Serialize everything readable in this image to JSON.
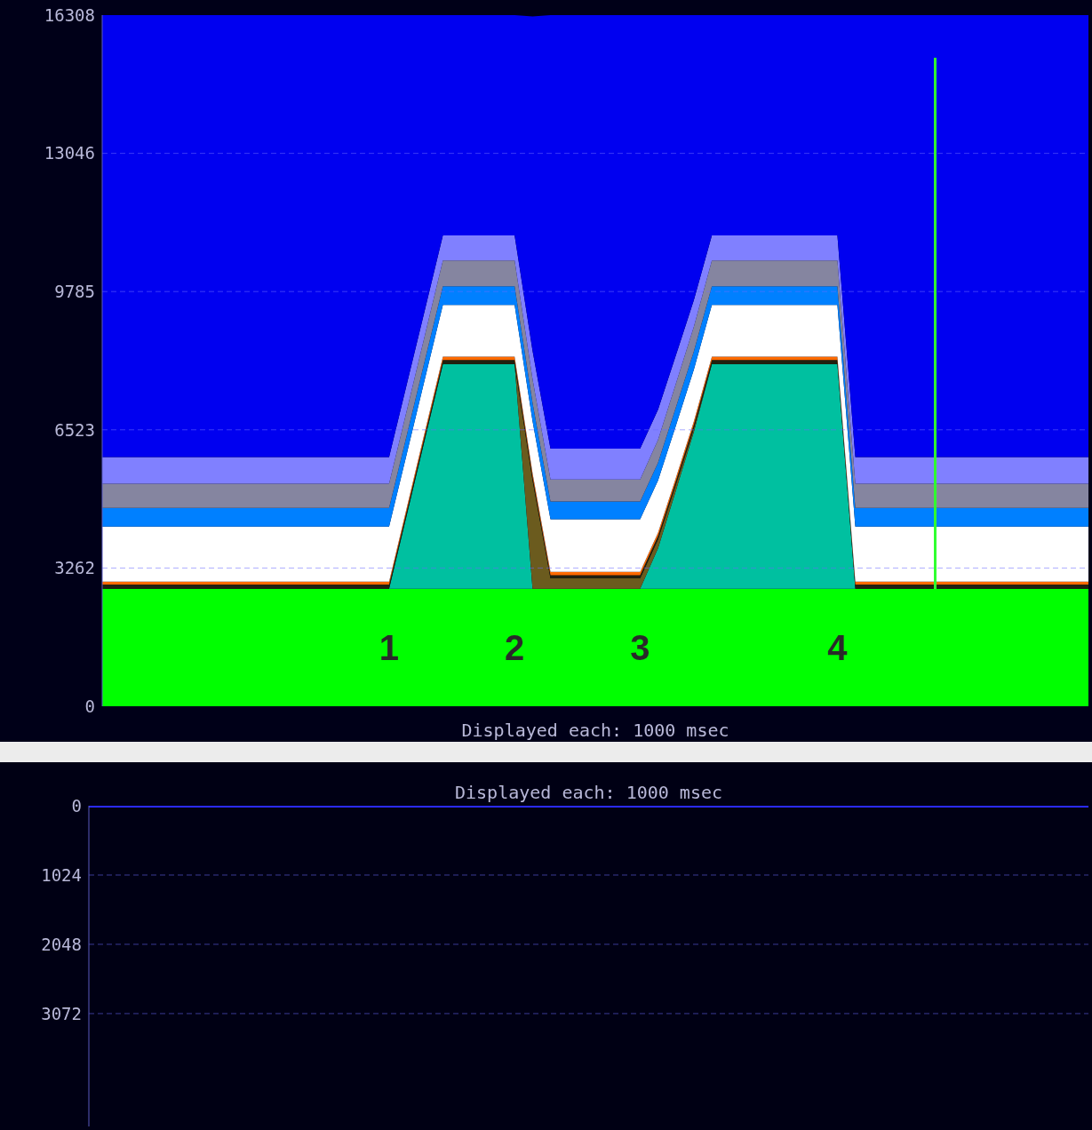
{
  "chart_data": [
    {
      "type": "area",
      "stacked": true,
      "xlabel": "Displayed each: 1000 msec",
      "grid": "y",
      "ylim": [
        0,
        16308
      ],
      "yticks": [
        0,
        3262,
        6523,
        9785,
        13046,
        16308
      ],
      "annotations": [
        "1",
        "2",
        "3",
        "4"
      ],
      "categories": [
        null,
        null,
        null,
        null,
        null,
        null,
        null,
        null,
        null,
        null,
        null,
        null,
        null,
        null,
        null,
        null,
        null,
        null,
        null,
        null,
        null,
        null,
        null,
        null,
        null,
        null,
        null,
        null,
        null,
        null,
        null,
        null,
        null,
        null,
        null,
        null,
        null,
        null,
        null,
        null,
        null,
        null,
        null,
        null,
        null,
        null,
        null,
        null,
        null,
        null,
        null,
        null,
        null,
        null,
        null,
        null
      ],
      "series": [
        {
          "color": "#00ff00",
          "values": [
            2770,
            2770,
            2770,
            2770,
            2770,
            2770,
            2770,
            2770,
            2770,
            2770,
            2770,
            2770,
            2770,
            2770,
            2770,
            2770,
            2770,
            2770,
            2770,
            2770,
            2770,
            2770,
            2770,
            2770,
            2770,
            2770,
            2770,
            2770,
            2770,
            2770,
            2770,
            2770,
            2770,
            2770,
            2770,
            2770,
            2770,
            2770,
            2770,
            2770,
            2770,
            2770,
            2770,
            2770,
            2770,
            2770,
            2770,
            2770,
            2770,
            2770,
            2770,
            2770,
            2770,
            2770,
            2770,
            2770
          ]
        },
        {
          "color": "#00c0a0",
          "values": [
            0,
            0,
            0,
            0,
            0,
            0,
            0,
            0,
            0,
            0,
            0,
            0,
            0,
            0,
            0,
            0,
            0,
            1770,
            3540,
            5300,
            5300,
            5300,
            5300,
            5300,
            0,
            0,
            0,
            0,
            0,
            0,
            0,
            960,
            2330,
            3710,
            5300,
            5300,
            5300,
            5300,
            5300,
            5300,
            5300,
            5300,
            0,
            0,
            0,
            0,
            0,
            0,
            0,
            0,
            0,
            0,
            0,
            0,
            0,
            0
          ]
        },
        {
          "color": "#6b5b1e",
          "values": [
            null,
            null,
            null,
            null,
            null,
            null,
            null,
            null,
            null,
            null,
            null,
            null,
            null,
            null,
            null,
            null,
            null,
            null,
            null,
            null,
            null,
            null,
            null,
            0,
            2560,
            250,
            250,
            250,
            250,
            250,
            250,
            210,
            140,
            80,
            0,
            null,
            null,
            null,
            null,
            null,
            null,
            null,
            null,
            null,
            null,
            null,
            null,
            null,
            null,
            null,
            null,
            null,
            null,
            null,
            null,
            null
          ]
        },
        {
          "color": "#202010",
          "values": [
            100,
            100,
            100,
            100,
            100,
            100,
            100,
            100,
            100,
            100,
            100,
            100,
            100,
            100,
            100,
            100,
            100,
            100,
            100,
            100,
            100,
            100,
            100,
            100,
            90,
            70,
            70,
            70,
            70,
            70,
            70,
            80,
            80,
            90,
            100,
            100,
            100,
            100,
            100,
            100,
            100,
            100,
            100,
            100,
            100,
            100,
            100,
            100,
            100,
            100,
            100,
            100,
            100,
            100,
            100,
            100
          ]
        },
        {
          "color": "#ff6a00",
          "values": [
            70,
            70,
            70,
            70,
            70,
            70,
            70,
            70,
            70,
            70,
            70,
            70,
            70,
            70,
            70,
            70,
            70,
            70,
            80,
            80,
            80,
            80,
            80,
            80,
            80,
            80,
            80,
            80,
            80,
            80,
            80,
            80,
            80,
            80,
            80,
            80,
            80,
            80,
            80,
            80,
            80,
            80,
            70,
            70,
            70,
            70,
            70,
            70,
            70,
            70,
            70,
            70,
            70,
            70,
            70,
            70
          ]
        },
        {
          "color": "#ffffff",
          "values": [
            1300,
            1300,
            1300,
            1300,
            1300,
            1300,
            1300,
            1300,
            1300,
            1300,
            1300,
            1300,
            1300,
            1300,
            1300,
            1300,
            1300,
            1270,
            1240,
            1220,
            1220,
            1220,
            1220,
            1220,
            1230,
            1240,
            1240,
            1240,
            1240,
            1240,
            1240,
            1230,
            1230,
            1220,
            1220,
            1220,
            1220,
            1220,
            1220,
            1220,
            1220,
            1220,
            1300,
            1300,
            1300,
            1300,
            1300,
            1300,
            1300,
            1300,
            1300,
            1300,
            1300,
            1300,
            1300,
            1300
          ]
        },
        {
          "color": "#0080ff",
          "values": [
            440,
            440,
            440,
            440,
            440,
            440,
            440,
            440,
            440,
            440,
            440,
            440,
            440,
            440,
            440,
            440,
            440,
            440,
            440,
            440,
            440,
            440,
            440,
            440,
            430,
            420,
            420,
            420,
            420,
            420,
            420,
            420,
            430,
            430,
            440,
            440,
            440,
            440,
            440,
            440,
            440,
            440,
            440,
            440,
            440,
            440,
            440,
            440,
            440,
            440,
            440,
            440,
            440,
            440,
            440,
            440
          ]
        },
        {
          "color": "#8585a0",
          "values": [
            570,
            570,
            570,
            570,
            570,
            570,
            570,
            570,
            570,
            570,
            570,
            570,
            570,
            570,
            570,
            570,
            570,
            580,
            590,
            610,
            610,
            610,
            610,
            610,
            560,
            520,
            520,
            520,
            520,
            520,
            520,
            540,
            560,
            580,
            610,
            610,
            610,
            610,
            610,
            610,
            610,
            610,
            570,
            570,
            570,
            570,
            570,
            570,
            570,
            570,
            570,
            570,
            570,
            570,
            570,
            570
          ]
        },
        {
          "color": "#8080ff",
          "values": [
            630,
            630,
            630,
            630,
            630,
            630,
            630,
            630,
            630,
            630,
            630,
            630,
            630,
            630,
            630,
            630,
            630,
            620,
            600,
            590,
            590,
            590,
            590,
            590,
            670,
            730,
            730,
            730,
            730,
            730,
            730,
            710,
            670,
            630,
            590,
            590,
            590,
            590,
            590,
            590,
            590,
            590,
            630,
            630,
            630,
            630,
            630,
            630,
            630,
            630,
            630,
            630,
            630,
            630,
            630,
            630
          ]
        },
        {
          "color": "#0000f0",
          "values": [
            10428,
            10428,
            10428,
            10428,
            10428,
            10428,
            10428,
            10428,
            10428,
            10428,
            10428,
            10428,
            10428,
            10428,
            10428,
            10428,
            10428,
            8688,
            6948,
            5198,
            5198,
            5198,
            5198,
            5198,
            7888,
            10228,
            10228,
            10228,
            10228,
            10228,
            10228,
            9308,
            8018,
            6718,
            5198,
            5198,
            5198,
            5198,
            5198,
            5198,
            5198,
            5198,
            10428,
            10428,
            10428,
            10428,
            10428,
            10428,
            10428,
            10428,
            10428,
            10428,
            10428,
            10428,
            10428,
            10428
          ]
        }
      ]
    },
    {
      "type": "line",
      "title": "Displayed each: 1000 msec",
      "grid": "y",
      "ylim": [
        4740,
        0
      ],
      "yticks": [
        0,
        1024,
        2048,
        3072
      ],
      "categories": [
        null,
        null,
        null,
        null,
        null,
        null,
        null,
        null,
        null,
        null,
        null,
        null,
        null,
        null,
        null,
        null,
        null,
        null,
        null,
        null,
        null,
        null,
        null,
        null,
        null,
        null,
        null,
        null,
        null,
        null,
        null,
        null,
        null,
        null,
        null,
        null,
        null,
        null,
        null,
        null,
        null,
        null,
        null,
        null,
        null,
        null,
        null,
        null,
        null,
        null,
        null,
        null,
        null,
        null,
        null,
        null
      ],
      "series": [
        {
          "color": "#2a2aff",
          "values": [
            0,
            0,
            0,
            0,
            0,
            0,
            0,
            0,
            0,
            0,
            0,
            0,
            0,
            0,
            0,
            0,
            0,
            0,
            0,
            0,
            0,
            0,
            0,
            0,
            0,
            0,
            0,
            0,
            0,
            0,
            0,
            0,
            0,
            0,
            0,
            0,
            0,
            0,
            0,
            0,
            0,
            0,
            0,
            0,
            0,
            0,
            0,
            0,
            0,
            0,
            0,
            0,
            0,
            0,
            0,
            0
          ]
        }
      ]
    }
  ]
}
